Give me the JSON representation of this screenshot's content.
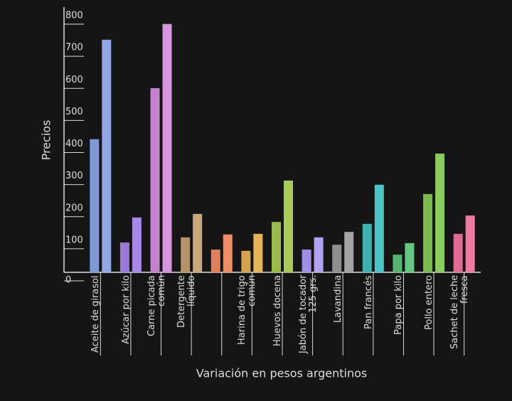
{
  "chart_data": {
    "type": "bar",
    "y_label": "Precios",
    "x_label": "Variación en pesos argentinos",
    "categories": [
      "Aceite de girasol",
      "Azúcar por kilo",
      "Carne picada común",
      "Detergente líquido",
      null,
      "Harina de trigo común",
      "Huevos docena",
      "Jabón de tocador 125 grs.",
      "Lavandina",
      "Pan francés",
      "Papa por kilo",
      "Pollo entero",
      "Sachet de leche fresca"
    ],
    "series": [
      {
        "values": [
          415,
          93,
          574,
          109,
          71,
          67,
          157,
          71,
          86,
          151,
          55,
          244,
          120
        ],
        "colors": [
          "#7f98d8",
          "#9a78d8",
          "#c77fd0",
          "#b5936a",
          "#e0805a",
          "#d6a24d",
          "#9ab94a",
          "#a08ee6",
          "#8f8f8f",
          "#3fb0b3",
          "#55b570",
          "#7dba4e",
          "#e06b90"
        ]
      },
      {
        "values": [
          725,
          171,
          774,
          182,
          118,
          120,
          286,
          109,
          126,
          273,
          91,
          370,
          177
        ],
        "colors": [
          "#94a8e8",
          "#a887e6",
          "#d795e0",
          "#c9a67b",
          "#ec8e68",
          "#e6b35c",
          "#aacb58",
          "#b2a0f0",
          "#a3a3a3",
          "#4dc4c7",
          "#65c780",
          "#8ccb5d",
          "#f07ba0"
        ]
      }
    ],
    "ylim": [
      0,
      800
    ],
    "yticks": [
      0,
      100,
      200,
      300,
      400,
      500,
      600,
      700,
      800
    ]
  }
}
